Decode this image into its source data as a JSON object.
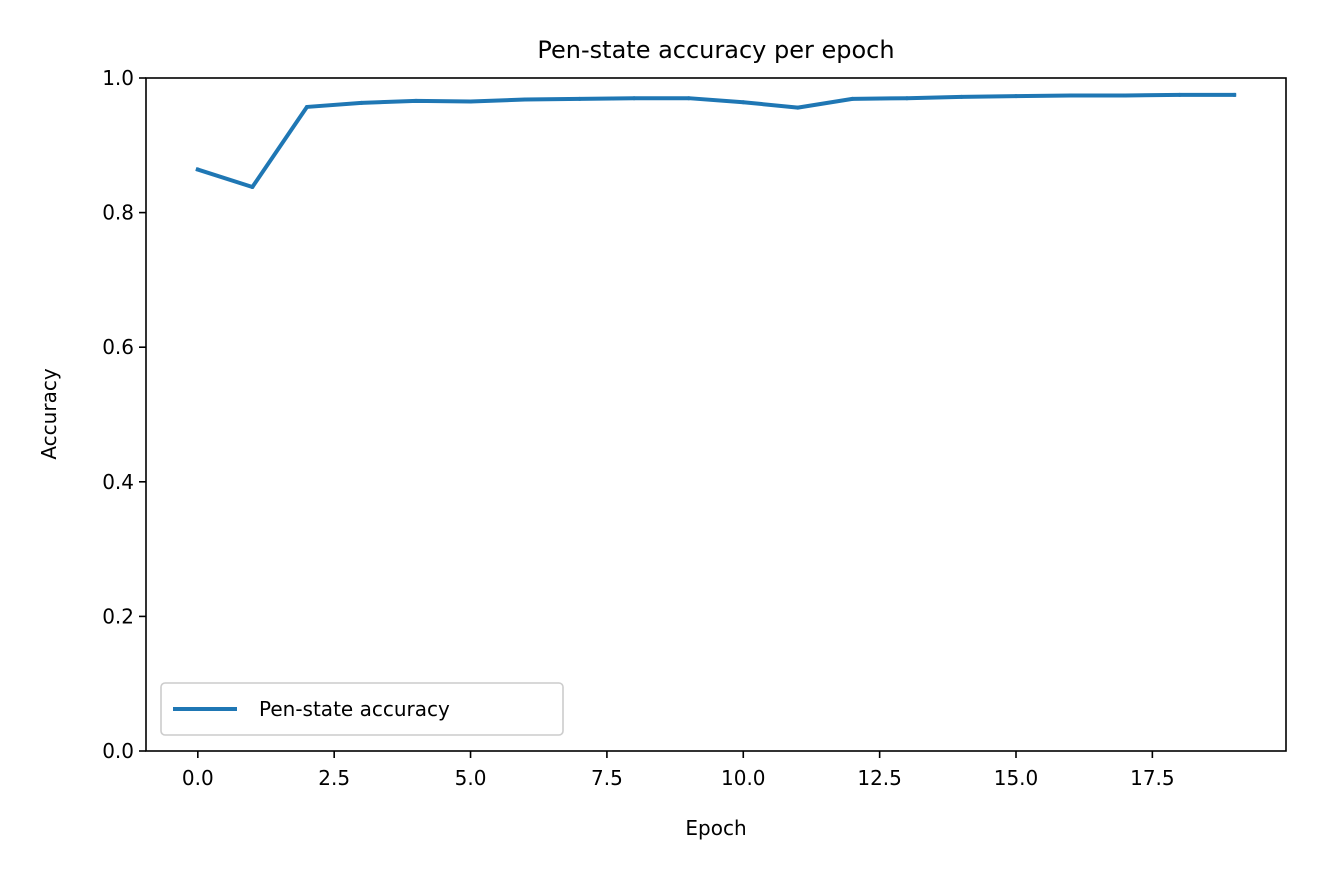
{
  "chart_data": {
    "type": "line",
    "title": "Pen-state accuracy per epoch",
    "xlabel": "Epoch",
    "ylabel": "Accuracy",
    "xlim": [
      -0.95,
      19.95
    ],
    "ylim": [
      0.0,
      1.0
    ],
    "xticks": [
      0.0,
      2.5,
      5.0,
      7.5,
      10.0,
      12.5,
      15.0,
      17.5
    ],
    "xtick_labels": [
      "0.0",
      "2.5",
      "5.0",
      "7.5",
      "10.0",
      "12.5",
      "15.0",
      "17.5"
    ],
    "yticks": [
      0.0,
      0.2,
      0.4,
      0.6,
      0.8,
      1.0
    ],
    "ytick_labels": [
      "0.0",
      "0.2",
      "0.4",
      "0.6",
      "0.8",
      "1.0"
    ],
    "grid": false,
    "legend_position": "lower-left",
    "series": [
      {
        "name": "Pen-state accuracy",
        "color": "#1f77b4",
        "x": [
          0,
          1,
          2,
          3,
          4,
          5,
          6,
          7,
          8,
          9,
          10,
          11,
          12,
          13,
          14,
          15,
          16,
          17,
          18,
          19
        ],
        "values": [
          0.864,
          0.838,
          0.957,
          0.963,
          0.966,
          0.965,
          0.968,
          0.969,
          0.97,
          0.97,
          0.964,
          0.956,
          0.969,
          0.97,
          0.972,
          0.973,
          0.974,
          0.974,
          0.975,
          0.975
        ]
      }
    ]
  }
}
